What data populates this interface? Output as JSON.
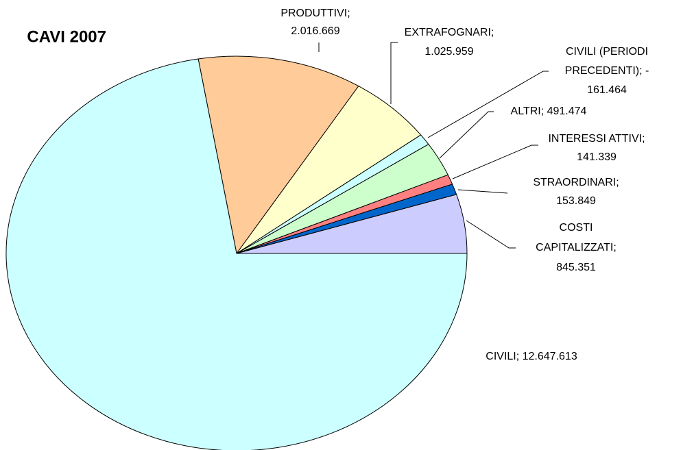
{
  "chart_data": {
    "type": "pie",
    "title": "CAVI 2007",
    "values": [
      845351,
      153849,
      141339,
      491474,
      -161464,
      1025959,
      2016669,
      12647613
    ],
    "value_labels": [
      [
        "COSTI",
        "CAPITALIZZATI;",
        "845.351"
      ],
      [
        "STRAORDINARI;",
        "153.849"
      ],
      [
        "INTERESSI ATTIVI;",
        "141.339"
      ],
      [
        "ALTRI; 491.474"
      ],
      [
        "CIVILI (PERIODI",
        "PRECEDENTI); -",
        "161.464"
      ],
      [
        "EXTRAFOGNARI;",
        "1.025.959"
      ],
      [
        "PRODUTTIVI;",
        "2.016.669"
      ],
      [
        "CIVILI; 12.647.613"
      ]
    ],
    "colors": [
      "#ccccff",
      "#0066cc",
      "#ff8080",
      "#ccffcc",
      "#ccffff",
      "#ffffcc",
      "#ffcc99",
      "#ccffff"
    ]
  }
}
